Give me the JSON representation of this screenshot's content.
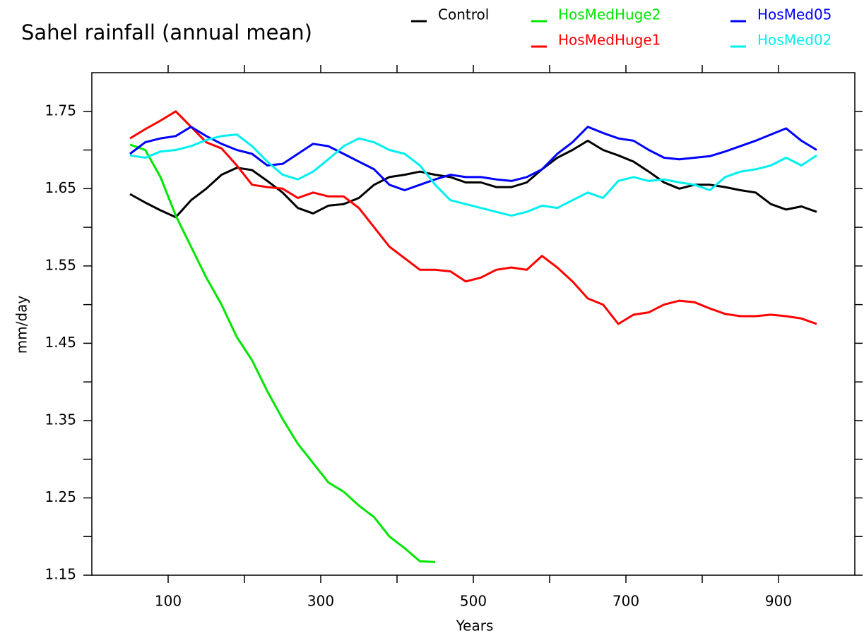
{
  "chart_data": {
    "type": "line",
    "title": "Sahel rainfall (annual mean)",
    "xlabel": "Years",
    "ylabel": "mm/day",
    "x": [
      50,
      70,
      90,
      110,
      130,
      150,
      170,
      190,
      210,
      230,
      250,
      270,
      290,
      310,
      330,
      350,
      370,
      390,
      410,
      430,
      450,
      470,
      490,
      510,
      530,
      550,
      570,
      590,
      610,
      630,
      650,
      670,
      690,
      710,
      730,
      750,
      770,
      790,
      810,
      830,
      850,
      870,
      890,
      910,
      930,
      950
    ],
    "series": [
      {
        "name": "Control",
        "color": "#000000",
        "values": [
          1.643,
          1.632,
          1.622,
          1.613,
          1.635,
          1.65,
          1.668,
          1.677,
          1.674,
          1.66,
          1.645,
          1.625,
          1.618,
          1.628,
          1.63,
          1.638,
          1.655,
          1.665,
          1.668,
          1.672,
          1.668,
          1.665,
          1.658,
          1.658,
          1.652,
          1.652,
          1.658,
          1.675,
          1.69,
          1.7,
          1.712,
          1.7,
          1.693,
          1.685,
          1.672,
          1.658,
          1.65,
          1.655,
          1.655,
          1.652,
          1.648,
          1.645,
          1.63,
          1.623,
          1.627,
          1.62
        ]
      },
      {
        "name": "HosMedHuge2",
        "color": "#00e600",
        "values": [
          1.707,
          1.7,
          1.665,
          1.615,
          1.575,
          1.535,
          1.5,
          1.458,
          1.428,
          1.388,
          1.352,
          1.32,
          1.295,
          1.27,
          1.258,
          1.24,
          1.225,
          1.2,
          1.185,
          1.168,
          1.167,
          null,
          null,
          null,
          null,
          null,
          null,
          null,
          null,
          null,
          null,
          null,
          null,
          null,
          null,
          null,
          null,
          null,
          null,
          null,
          null,
          null,
          null,
          null,
          null,
          null
        ]
      },
      {
        "name": "HosMedHuge1",
        "color": "#ff0000",
        "values": [
          1.715,
          1.727,
          1.738,
          1.75,
          1.73,
          1.71,
          1.702,
          1.68,
          1.655,
          1.652,
          1.65,
          1.638,
          1.645,
          1.64,
          1.64,
          1.625,
          1.6,
          1.575,
          1.56,
          1.545,
          1.545,
          1.543,
          1.53,
          1.535,
          1.545,
          1.548,
          1.545,
          1.563,
          1.548,
          1.53,
          1.508,
          1.5,
          1.475,
          1.487,
          1.49,
          1.5,
          1.505,
          1.503,
          1.495,
          1.488,
          1.485,
          1.485,
          1.487,
          1.485,
          1.482,
          1.475
        ]
      },
      {
        "name": "HosMed05",
        "color": "#0000ff",
        "values": [
          1.695,
          1.71,
          1.715,
          1.718,
          1.73,
          1.718,
          1.708,
          1.7,
          1.695,
          1.68,
          1.682,
          1.695,
          1.708,
          1.705,
          1.695,
          1.685,
          1.675,
          1.655,
          1.648,
          1.655,
          1.662,
          1.668,
          1.665,
          1.665,
          1.662,
          1.66,
          1.665,
          1.675,
          1.695,
          1.71,
          1.73,
          1.722,
          1.715,
          1.712,
          1.7,
          1.69,
          1.688,
          1.69,
          1.692,
          1.698,
          1.705,
          1.712,
          1.72,
          1.728,
          1.712,
          1.7
        ]
      },
      {
        "name": "HosMed02",
        "color": "#00f0f0",
        "values": [
          1.693,
          1.69,
          1.698,
          1.7,
          1.705,
          1.713,
          1.718,
          1.72,
          1.705,
          1.685,
          1.668,
          1.662,
          1.672,
          1.688,
          1.705,
          1.715,
          1.71,
          1.7,
          1.695,
          1.68,
          1.655,
          1.635,
          1.63,
          1.625,
          1.62,
          1.615,
          1.62,
          1.628,
          1.625,
          1.635,
          1.645,
          1.638,
          1.66,
          1.665,
          1.66,
          1.662,
          1.658,
          1.655,
          1.648,
          1.665,
          1.672,
          1.675,
          1.68,
          1.69,
          1.68,
          1.693
        ]
      }
    ],
    "xlim": [
      0,
      1000
    ],
    "xticks": [
      100,
      300,
      500,
      700,
      900
    ],
    "xminorticks": [
      200,
      400,
      600,
      800
    ],
    "ylim": [
      1.15,
      1.8
    ],
    "yticks": [
      1.15,
      1.25,
      1.35,
      1.45,
      1.55,
      1.65,
      1.75
    ],
    "yminorticks": [
      1.2,
      1.3,
      1.4,
      1.5,
      1.6,
      1.7
    ],
    "grid": false
  }
}
